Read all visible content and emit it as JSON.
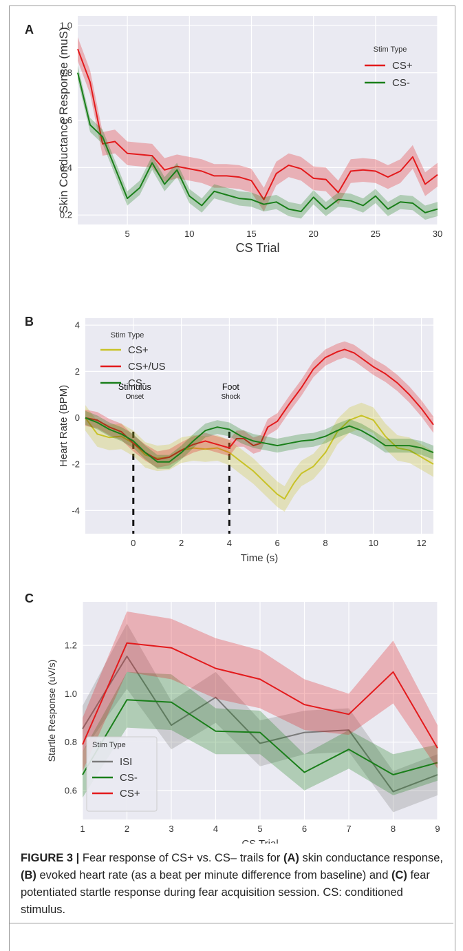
{
  "figure": {
    "panel_a_letter": "A",
    "panel_b_letter": "B",
    "panel_c_letter": "C",
    "caption": {
      "label": "FIGURE 3 |",
      "t1": " Fear response of CS+ vs. CS– trails for ",
      "a": "(A)",
      "t2": " skin conductance response, ",
      "b": "(B)",
      "t3": " evoked heart rate (as a beat per minute difference from baseline) and ",
      "c": "(C)",
      "t4": " fear potentiated startle response during fear acquisition session. CS: conditioned stimulus."
    }
  },
  "colors": {
    "red": "#e31a1c",
    "green": "#1a7f1a",
    "yellow": "#c8c227",
    "gray": "#7a7a7a",
    "panel_bg": "#eaeaf2"
  },
  "chart_data": [
    {
      "type": "line",
      "panel": "A",
      "xlabel": "CS Trial",
      "ylabel": "Skin Conductance Response (muS)",
      "xlim": [
        1,
        30
      ],
      "ylim": [
        0.16,
        1.04
      ],
      "xticks": [
        "5",
        "10",
        "15",
        "20",
        "25",
        "30"
      ],
      "yticks": [
        "0.2",
        "0.4",
        "0.6",
        "0.8",
        "1.0"
      ],
      "grid": true,
      "legend": {
        "title": "Stim Type",
        "placement": "top-right"
      },
      "x": [
        1,
        2,
        3,
        4,
        5,
        6,
        7,
        8,
        9,
        10,
        11,
        12,
        13,
        14,
        15,
        16,
        17,
        18,
        19,
        20,
        21,
        22,
        23,
        24,
        25,
        26,
        27,
        28,
        29,
        30
      ],
      "series": [
        {
          "name": "CS+",
          "color": "#e31a1c",
          "values": [
            0.9,
            0.76,
            0.5,
            0.51,
            0.46,
            0.455,
            0.45,
            0.39,
            0.405,
            0.395,
            0.385,
            0.365,
            0.365,
            0.36,
            0.345,
            0.265,
            0.375,
            0.41,
            0.395,
            0.355,
            0.35,
            0.295,
            0.385,
            0.39,
            0.385,
            0.36,
            0.385,
            0.445,
            0.33,
            0.37
          ],
          "ci": 0.05
        },
        {
          "name": "CS-",
          "color": "#1a7f1a",
          "values": [
            0.8,
            0.58,
            0.53,
            0.4,
            0.27,
            0.315,
            0.42,
            0.33,
            0.39,
            0.28,
            0.24,
            0.3,
            0.285,
            0.27,
            0.265,
            0.245,
            0.255,
            0.225,
            0.215,
            0.275,
            0.225,
            0.265,
            0.26,
            0.24,
            0.28,
            0.225,
            0.255,
            0.25,
            0.21,
            0.225
          ],
          "ci": 0.03
        }
      ]
    },
    {
      "type": "line",
      "panel": "B",
      "xlabel": "Time (s)",
      "ylabel": "Heart Rate (BPM)",
      "xlim": [
        -2,
        12.5
      ],
      "ylim": [
        -5,
        4.3
      ],
      "xticks": [
        "0",
        "2",
        "4",
        "6",
        "8",
        "10",
        "12"
      ],
      "yticks": [
        "-4",
        "-2",
        "0",
        "2",
        "4"
      ],
      "grid": true,
      "legend": {
        "title": "Stim Type",
        "placement": "top-left"
      },
      "annotations": [
        {
          "x": 0,
          "label_top": "Stimulus",
          "label_bottom": "Onset"
        },
        {
          "x": 4,
          "label_top": "Foot",
          "label_bottom": "Shock"
        }
      ],
      "series": [
        {
          "name": "CS+",
          "color": "#c8c227",
          "ci": 0.55,
          "points": [
            [
              -2,
              0
            ],
            [
              -1.5,
              -0.7
            ],
            [
              -1,
              -0.85
            ],
            [
              -0.5,
              -0.8
            ],
            [
              0,
              -1.1
            ],
            [
              0.5,
              -1.6
            ],
            [
              1,
              -1.75
            ],
            [
              1.5,
              -1.7
            ],
            [
              2,
              -1.4
            ],
            [
              2.5,
              -1.3
            ],
            [
              3,
              -1.35
            ],
            [
              3.5,
              -1.3
            ],
            [
              4,
              -1.5
            ],
            [
              4.5,
              -1.9
            ],
            [
              5,
              -2.3
            ],
            [
              5.5,
              -2.8
            ],
            [
              6,
              -3.3
            ],
            [
              6.3,
              -3.5
            ],
            [
              6.7,
              -2.8
            ],
            [
              7,
              -2.4
            ],
            [
              7.5,
              -2.1
            ],
            [
              8,
              -1.5
            ],
            [
              8.5,
              -0.6
            ],
            [
              9,
              -0.1
            ],
            [
              9.5,
              0.1
            ],
            [
              10,
              -0.1
            ],
            [
              10.5,
              -0.8
            ],
            [
              11,
              -1.3
            ],
            [
              11.5,
              -1.4
            ],
            [
              12,
              -1.7
            ],
            [
              12.5,
              -2.0
            ]
          ]
        },
        {
          "name": "CS+/US",
          "color": "#e31a1c",
          "ci": 0.35,
          "points": [
            [
              -2,
              0
            ],
            [
              -1.5,
              -0.1
            ],
            [
              -1,
              -0.4
            ],
            [
              -0.5,
              -0.6
            ],
            [
              0,
              -1.1
            ],
            [
              0.5,
              -1.5
            ],
            [
              1,
              -1.8
            ],
            [
              1.5,
              -1.7
            ],
            [
              2,
              -1.4
            ],
            [
              2.5,
              -1.15
            ],
            [
              3,
              -1.0
            ],
            [
              3.5,
              -1.15
            ],
            [
              4,
              -1.3
            ],
            [
              4.3,
              -0.9
            ],
            [
              4.6,
              -0.9
            ],
            [
              5,
              -1.2
            ],
            [
              5.3,
              -1.1
            ],
            [
              5.6,
              -0.4
            ],
            [
              6,
              -0.15
            ],
            [
              6.5,
              0.6
            ],
            [
              7,
              1.3
            ],
            [
              7.5,
              2.1
            ],
            [
              8,
              2.6
            ],
            [
              8.5,
              2.85
            ],
            [
              8.8,
              2.95
            ],
            [
              9.2,
              2.8
            ],
            [
              9.6,
              2.5
            ],
            [
              10,
              2.2
            ],
            [
              10.5,
              1.9
            ],
            [
              11,
              1.5
            ],
            [
              11.5,
              1.0
            ],
            [
              12,
              0.4
            ],
            [
              12.5,
              -0.3
            ]
          ]
        },
        {
          "name": "CS-",
          "color": "#1a7f1a",
          "ci": 0.3,
          "points": [
            [
              -2,
              0
            ],
            [
              -1.5,
              -0.2
            ],
            [
              -1,
              -0.5
            ],
            [
              -0.5,
              -0.7
            ],
            [
              0,
              -1.0
            ],
            [
              0.5,
              -1.5
            ],
            [
              1,
              -1.9
            ],
            [
              1.5,
              -1.9
            ],
            [
              2,
              -1.5
            ],
            [
              2.5,
              -1.0
            ],
            [
              3,
              -0.55
            ],
            [
              3.5,
              -0.4
            ],
            [
              4,
              -0.5
            ],
            [
              4.5,
              -0.8
            ],
            [
              5,
              -1.0
            ],
            [
              5.5,
              -1.1
            ],
            [
              6,
              -1.2
            ],
            [
              6.5,
              -1.1
            ],
            [
              7,
              -1.0
            ],
            [
              7.5,
              -0.95
            ],
            [
              8,
              -0.8
            ],
            [
              8.5,
              -0.55
            ],
            [
              9,
              -0.35
            ],
            [
              9.5,
              -0.55
            ],
            [
              10,
              -0.85
            ],
            [
              10.5,
              -1.2
            ],
            [
              11,
              -1.2
            ],
            [
              11.5,
              -1.2
            ],
            [
              12,
              -1.3
            ],
            [
              12.5,
              -1.5
            ]
          ]
        }
      ]
    },
    {
      "type": "line",
      "panel": "C",
      "xlabel": "CS Trial",
      "ylabel": "Startle Response (uV/s)",
      "xlim": [
        1,
        9
      ],
      "ylim": [
        0.48,
        1.38
      ],
      "xticks": [
        "1",
        "2",
        "3",
        "4",
        "5",
        "6",
        "7",
        "8",
        "9"
      ],
      "yticks": [
        "0.6",
        "0.8",
        "1.0",
        "1.2"
      ],
      "grid": true,
      "legend": {
        "title": "Stim Type",
        "placement": "bottom-left"
      },
      "x": [
        1,
        2,
        3,
        4,
        5,
        6,
        7,
        8,
        9
      ],
      "series": [
        {
          "name": "ISI",
          "color": "#7a7a7a",
          "values": [
            0.855,
            1.155,
            0.87,
            0.985,
            0.795,
            0.84,
            0.85,
            0.595,
            0.665
          ],
          "lower": [
            0.76,
            1.02,
            0.77,
            0.88,
            0.7,
            0.75,
            0.76,
            0.51,
            0.58
          ],
          "upper": [
            0.95,
            1.29,
            0.97,
            1.09,
            0.89,
            0.93,
            0.94,
            0.68,
            0.75
          ]
        },
        {
          "name": "CS-",
          "color": "#1a7f1a",
          "values": [
            0.665,
            0.975,
            0.965,
            0.845,
            0.84,
            0.675,
            0.77,
            0.665,
            0.715
          ],
          "lower": [
            0.57,
            0.86,
            0.85,
            0.75,
            0.75,
            0.6,
            0.69,
            0.58,
            0.64
          ],
          "upper": [
            0.76,
            1.09,
            1.08,
            0.94,
            0.93,
            0.75,
            0.85,
            0.75,
            0.79
          ]
        },
        {
          "name": "CS+",
          "color": "#e31a1c",
          "values": [
            0.79,
            1.21,
            1.19,
            1.105,
            1.06,
            0.955,
            0.915,
            1.09,
            0.775
          ],
          "lower": [
            0.68,
            1.09,
            1.06,
            0.98,
            0.94,
            0.85,
            0.83,
            0.96,
            0.69
          ],
          "upper": [
            0.9,
            1.34,
            1.31,
            1.23,
            1.18,
            1.06,
            1.0,
            1.22,
            0.87
          ]
        }
      ]
    }
  ]
}
